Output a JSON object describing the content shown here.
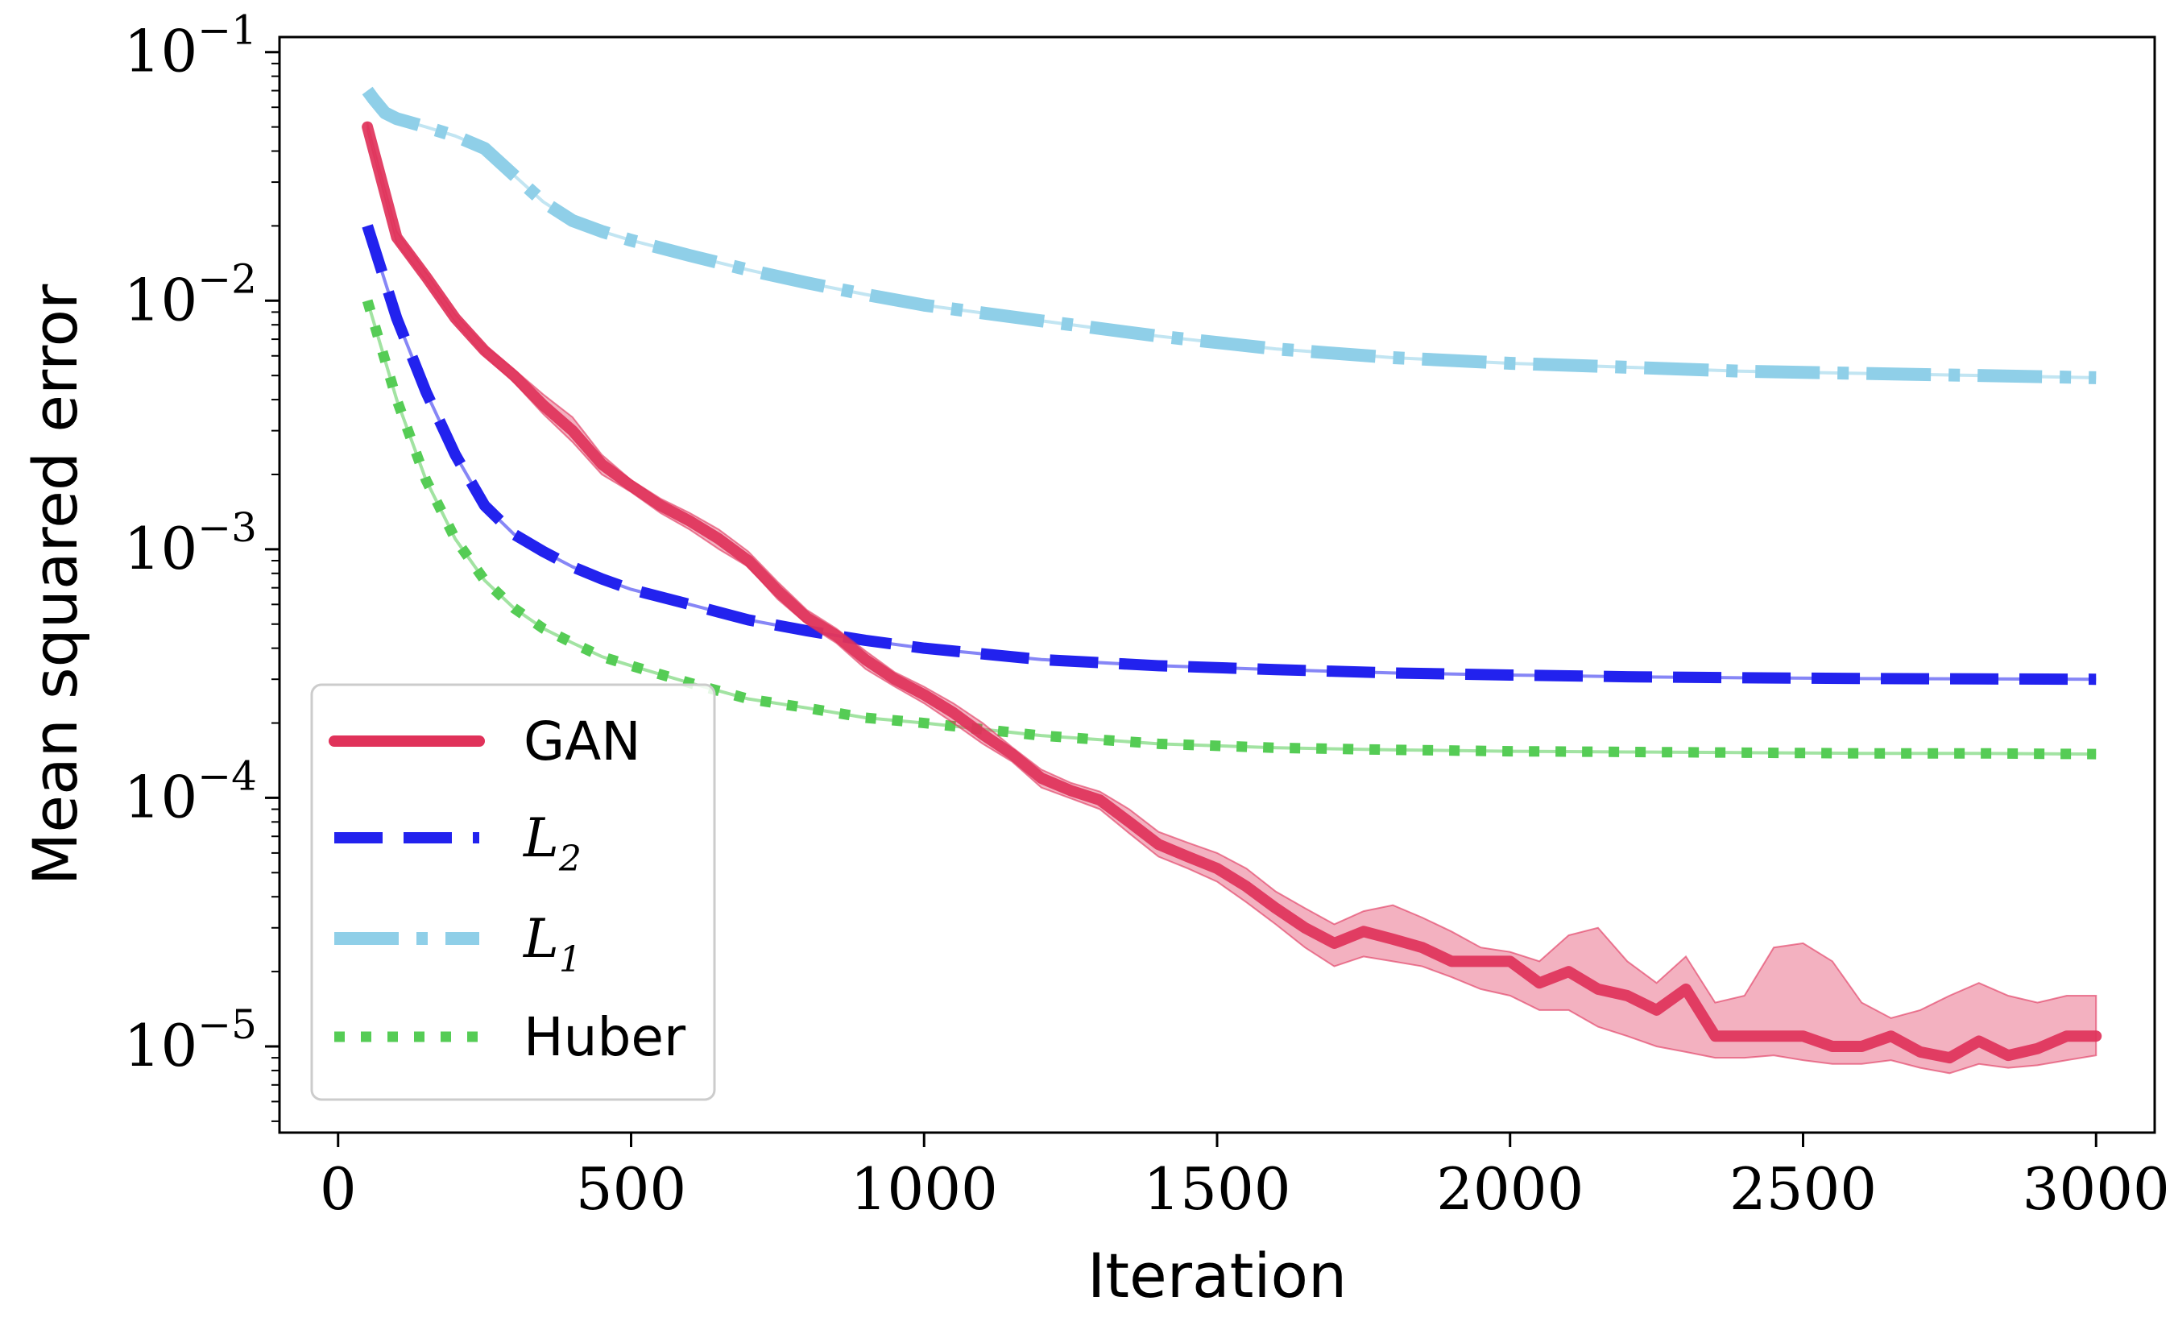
{
  "chart_data": {
    "type": "line",
    "title": "",
    "xlabel": "Iteration",
    "ylabel": "Mean squared error",
    "yscale": "log",
    "xlim": [
      -100,
      3100
    ],
    "ylim": [
      4.5e-06,
      0.115
    ],
    "x_ticks": [
      0,
      500,
      1000,
      1500,
      2000,
      2500,
      3000
    ],
    "x_tick_labels": [
      "0",
      "500",
      "1000",
      "1500",
      "2000",
      "2500",
      "3000"
    ],
    "y_ticks": [
      {
        "value": 0.1,
        "base": "10",
        "exp": "−1"
      },
      {
        "value": 0.01,
        "base": "10",
        "exp": "−2"
      },
      {
        "value": 0.001,
        "base": "10",
        "exp": "−3"
      },
      {
        "value": 0.0001,
        "base": "10",
        "exp": "−4"
      },
      {
        "value": 1e-05,
        "base": "10",
        "exp": "−5"
      }
    ],
    "legend_position": "lower-left",
    "series": [
      {
        "name": "GAN",
        "legend_label": "GAN",
        "color": "#e0325a",
        "style": "solid",
        "x": [
          50,
          100,
          150,
          200,
          250,
          300,
          350,
          400,
          450,
          500,
          550,
          600,
          650,
          700,
          750,
          800,
          850,
          900,
          950,
          1000,
          1050,
          1100,
          1150,
          1200,
          1250,
          1300,
          1350,
          1400,
          1450,
          1500,
          1550,
          1600,
          1650,
          1700,
          1750,
          1800,
          1850,
          1900,
          1950,
          2000,
          2050,
          2100,
          2150,
          2200,
          2250,
          2300,
          2350,
          2400,
          2450,
          2500,
          2550,
          2600,
          2650,
          2700,
          2750,
          2800,
          2850,
          2900,
          2950,
          3000
        ],
        "values": [
          0.05,
          0.018,
          0.0125,
          0.0085,
          0.0063,
          0.005,
          0.0038,
          0.003,
          0.0022,
          0.0018,
          0.0015,
          0.0013,
          0.0011,
          0.0009,
          0.00068,
          0.00053,
          0.00045,
          0.00036,
          0.0003,
          0.00026,
          0.00022,
          0.00018,
          0.00015,
          0.00012,
          0.000107,
          9.8e-05,
          8e-05,
          6.5e-05,
          5.8e-05,
          5.2e-05,
          4.4e-05,
          3.6e-05,
          3e-05,
          2.6e-05,
          2.9e-05,
          2.7e-05,
          2.5e-05,
          2.2e-05,
          2.2e-05,
          2.2e-05,
          1.8e-05,
          2e-05,
          1.7e-05,
          1.6e-05,
          1.4e-05,
          1.7e-05,
          1.1e-05,
          1.1e-05,
          1.1e-05,
          1.1e-05,
          1e-05,
          1e-05,
          1.1e-05,
          9.5e-06,
          9e-06,
          1.05e-05,
          9.2e-06,
          9.8e-06,
          1.1e-05,
          1.1e-05
        ],
        "band_upper": [
          0.052,
          0.019,
          0.013,
          0.0088,
          0.0066,
          0.0053,
          0.0042,
          0.0034,
          0.0024,
          0.0019,
          0.0016,
          0.0014,
          0.0012,
          0.00098,
          0.00074,
          0.00057,
          0.00048,
          0.00039,
          0.00032,
          0.00028,
          0.00024,
          0.0002,
          0.00016,
          0.00013,
          0.000115,
          0.000106,
          9e-05,
          7.3e-05,
          6.6e-05,
          6e-05,
          5.2e-05,
          4.2e-05,
          3.6e-05,
          3.1e-05,
          3.5e-05,
          3.7e-05,
          3.3e-05,
          2.9e-05,
          2.5e-05,
          2.4e-05,
          2.2e-05,
          2.8e-05,
          3e-05,
          2.2e-05,
          1.8e-05,
          2.3e-05,
          1.5e-05,
          1.6e-05,
          2.5e-05,
          2.6e-05,
          2.2e-05,
          1.5e-05,
          1.3e-05,
          1.4e-05,
          1.6e-05,
          1.8e-05,
          1.6e-05,
          1.5e-05,
          1.6e-05,
          1.6e-05
        ],
        "band_lower": [
          0.048,
          0.017,
          0.012,
          0.0082,
          0.006,
          0.0047,
          0.0035,
          0.0027,
          0.002,
          0.0017,
          0.0014,
          0.0012,
          0.001,
          0.00085,
          0.00063,
          0.0005,
          0.00042,
          0.00033,
          0.00028,
          0.00024,
          0.0002,
          0.000165,
          0.00014,
          0.00011,
          9.95e-05,
          9e-05,
          7.2e-05,
          5.8e-05,
          5.2e-05,
          4.6e-05,
          3.8e-05,
          3.1e-05,
          2.5e-05,
          2.1e-05,
          2.3e-05,
          2.2e-05,
          2.1e-05,
          1.9e-05,
          1.7e-05,
          1.6e-05,
          1.4e-05,
          1.4e-05,
          1.2e-05,
          1.1e-05,
          1e-05,
          9.5e-06,
          9e-06,
          9e-06,
          9.2e-06,
          8.8e-06,
          8.5e-06,
          8.5e-06,
          8.8e-06,
          8.2e-06,
          7.8e-06,
          8.5e-06,
          8.2e-06,
          8.4e-06,
          8.8e-06,
          9.2e-06
        ]
      },
      {
        "name": "L2",
        "legend_label": "L",
        "legend_sub": "2",
        "color": "#2222ee",
        "style": "dashed",
        "x": [
          50,
          100,
          150,
          200,
          250,
          300,
          350,
          400,
          450,
          500,
          600,
          700,
          800,
          900,
          1000,
          1200,
          1400,
          1600,
          1800,
          2000,
          2200,
          2400,
          2600,
          2800,
          3000
        ],
        "values": [
          0.02,
          0.0085,
          0.0043,
          0.0024,
          0.0015,
          0.00115,
          0.00098,
          0.00085,
          0.00076,
          0.00069,
          0.0006,
          0.00052,
          0.00047,
          0.00043,
          0.0004,
          0.00036,
          0.00034,
          0.000328,
          0.000318,
          0.000312,
          0.000307,
          0.000304,
          0.000302,
          0.000301,
          0.0003
        ]
      },
      {
        "name": "L1",
        "legend_label": "L",
        "legend_sub": "1",
        "color": "#8fcfe8",
        "style": "dashdot",
        "x": [
          50,
          60,
          80,
          100,
          150,
          200,
          250,
          300,
          350,
          400,
          450,
          500,
          600,
          700,
          800,
          900,
          1000,
          1200,
          1400,
          1600,
          1800,
          2000,
          2200,
          2400,
          2600,
          2800,
          3000
        ],
        "values": [
          0.07,
          0.065,
          0.057,
          0.054,
          0.05,
          0.046,
          0.041,
          0.032,
          0.025,
          0.021,
          0.019,
          0.0175,
          0.0152,
          0.0133,
          0.0118,
          0.0106,
          0.0096,
          0.0083,
          0.0072,
          0.0064,
          0.0059,
          0.0056,
          0.0054,
          0.0052,
          0.0051,
          0.005,
          0.0049
        ]
      },
      {
        "name": "Huber",
        "legend_label": "Huber",
        "color": "#55cc55",
        "style": "dotted",
        "x": [
          50,
          100,
          150,
          200,
          250,
          300,
          350,
          400,
          450,
          500,
          600,
          700,
          800,
          900,
          1000,
          1200,
          1400,
          1600,
          1800,
          2000,
          2200,
          2400,
          2600,
          2800,
          3000
        ],
        "values": [
          0.01,
          0.004,
          0.0019,
          0.0011,
          0.00075,
          0.00058,
          0.00048,
          0.00042,
          0.00037,
          0.00034,
          0.00029,
          0.00025,
          0.00023,
          0.00021,
          0.0002,
          0.000178,
          0.000165,
          0.000159,
          0.000156,
          0.000154,
          0.000153,
          0.000152,
          0.000151,
          0.000151,
          0.00015
        ]
      }
    ]
  }
}
